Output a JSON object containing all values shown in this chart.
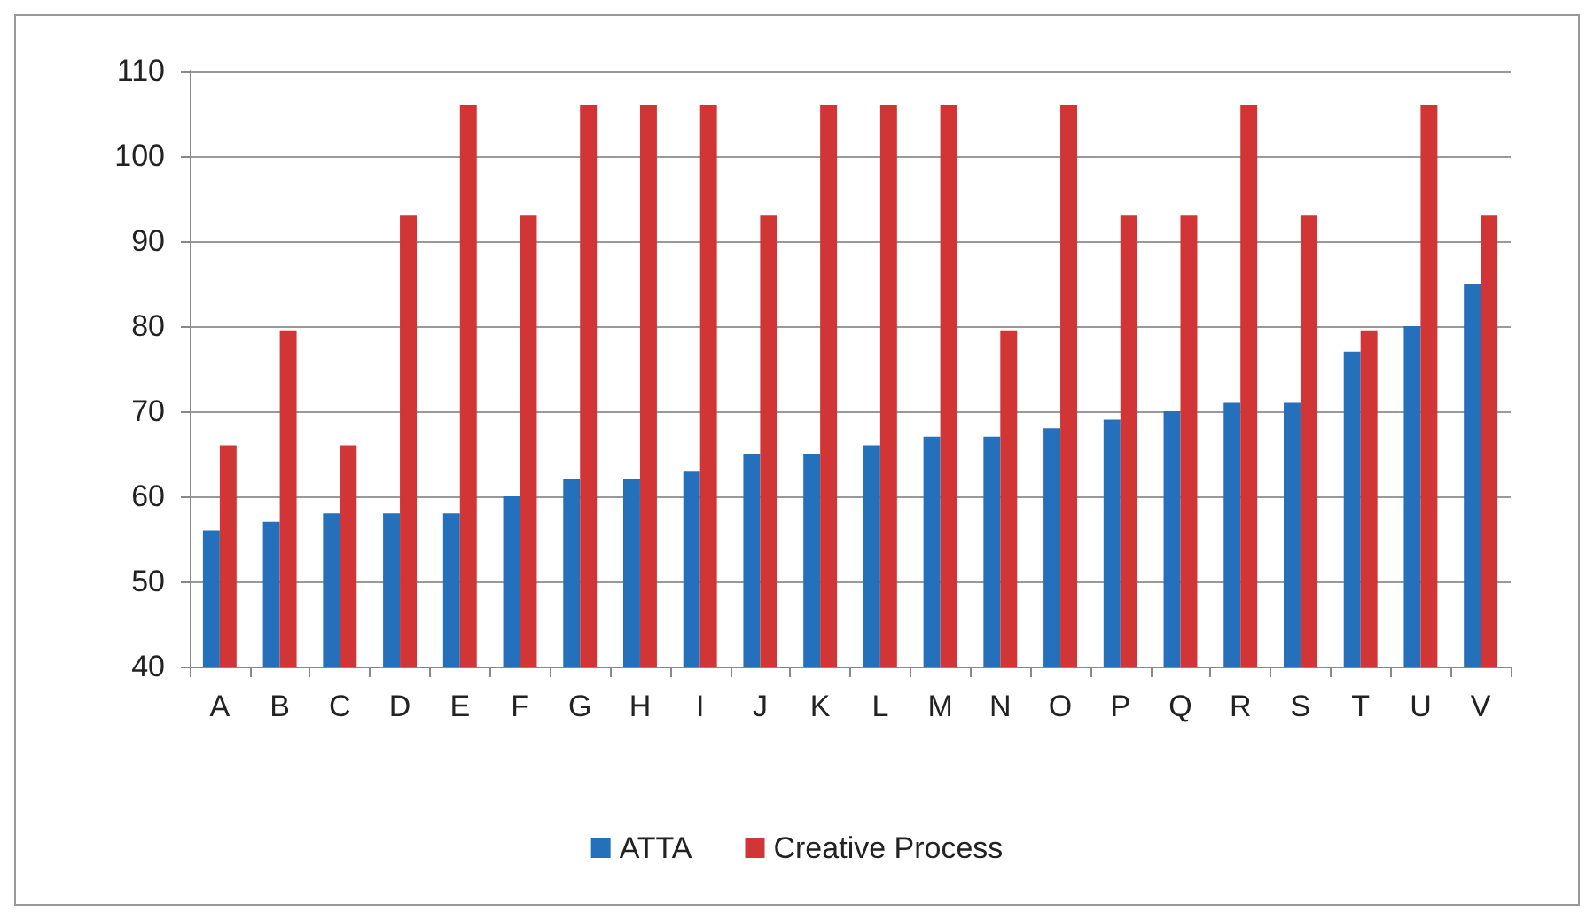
{
  "chart_data": {
    "type": "bar",
    "categories": [
      "A",
      "B",
      "C",
      "D",
      "E",
      "F",
      "G",
      "H",
      "I",
      "J",
      "K",
      "L",
      "M",
      "N",
      "O",
      "P",
      "Q",
      "R",
      "S",
      "T",
      "U",
      "V"
    ],
    "series": [
      {
        "name": "ATTA",
        "color": "#2570bb",
        "values": [
          56,
          57,
          58,
          58,
          58,
          60,
          62,
          62,
          63,
          65,
          65,
          66,
          67,
          67,
          68,
          69,
          70,
          71,
          71,
          77,
          80,
          85
        ]
      },
      {
        "name": "Creative Process",
        "color": "#d13536",
        "values": [
          66,
          79.5,
          66,
          93,
          106,
          93,
          106,
          106,
          106,
          93,
          106,
          106,
          106,
          79.5,
          106,
          93,
          93,
          106,
          93,
          79.5,
          106,
          93
        ]
      }
    ],
    "ylim": [
      40,
      110
    ],
    "yticks": [
      40,
      50,
      60,
      70,
      80,
      90,
      100,
      110
    ],
    "grid": "y",
    "legend": "bottom"
  }
}
